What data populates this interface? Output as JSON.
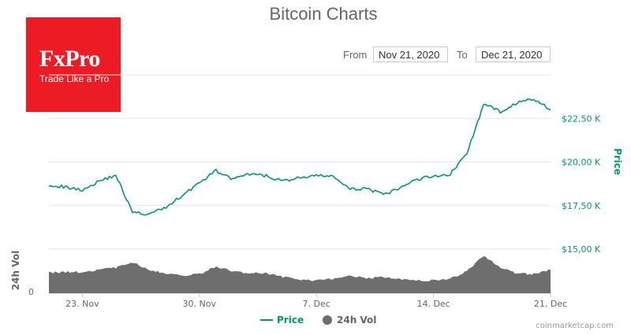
{
  "colors": {
    "price": "#019a6c",
    "volume": "#6e6e6e",
    "logo": "#ed1c24",
    "grid": "#e6e6e6"
  },
  "logo": {
    "main": "FxPro",
    "tagline": "Trade Like a Pro"
  },
  "range": {
    "from_label": "From",
    "from_value": "Nov 21, 2020",
    "to_label": "To",
    "to_value": "Dec 21, 2020"
  },
  "legend": {
    "price": "Price",
    "volume": "24h Vol"
  },
  "credits": "coinmarketcap.com",
  "chart_data": {
    "type": "line",
    "title": "Bitcoin Charts",
    "x_range": [
      "Nov 21, 2020",
      "Dec 21, 2020"
    ],
    "x_ticks": [
      "23. Nov",
      "30. Nov",
      "7. Dec",
      "14. Dec",
      "21. Dec"
    ],
    "price_axis": {
      "title": "Price",
      "ticks": [
        "$15,00 K",
        "$17,50 K",
        "$20,00 K",
        "$22,50 K"
      ],
      "values": [
        15000,
        17500,
        20000,
        22500
      ],
      "ylim": [
        15000,
        25000
      ],
      "side": "right"
    },
    "volume_axis": {
      "title": "24h Vol",
      "ticks": [
        "0"
      ]
    },
    "series": [
      {
        "name": "Price",
        "x": [
          "Nov 21, 2020",
          "Nov 22, 2020",
          "Nov 23, 2020",
          "Nov 24, 2020",
          "Nov 25, 2020",
          "Nov 26, 2020",
          "Nov 27, 2020",
          "Nov 28, 2020",
          "Nov 29, 2020",
          "Nov 30, 2020",
          "Dec 1, 2020",
          "Dec 2, 2020",
          "Dec 3, 2020",
          "Dec 4, 2020",
          "Dec 5, 2020",
          "Dec 6, 2020",
          "Dec 7, 2020",
          "Dec 8, 2020",
          "Dec 9, 2020",
          "Dec 10, 2020",
          "Dec 11, 2020",
          "Dec 12, 2020",
          "Dec 13, 2020",
          "Dec 14, 2020",
          "Dec 15, 2020",
          "Dec 16, 2020",
          "Dec 17, 2020",
          "Dec 18, 2020",
          "Dec 19, 2020",
          "Dec 20, 2020",
          "Dec 21, 2020"
        ],
        "values": [
          18700,
          18550,
          18400,
          18900,
          19250,
          17100,
          17000,
          17400,
          18100,
          18800,
          19500,
          19000,
          19300,
          19200,
          18900,
          19100,
          19200,
          19200,
          18400,
          18500,
          18100,
          18500,
          19000,
          19200,
          19300,
          20500,
          23300,
          22900,
          23400,
          23600,
          23000
        ]
      },
      {
        "name": "24h Vol",
        "x": [
          "Nov 21, 2020",
          "Nov 22, 2020",
          "Nov 23, 2020",
          "Nov 24, 2020",
          "Nov 25, 2020",
          "Nov 26, 2020",
          "Nov 27, 2020",
          "Nov 28, 2020",
          "Nov 29, 2020",
          "Nov 30, 2020",
          "Dec 1, 2020",
          "Dec 2, 2020",
          "Dec 3, 2020",
          "Dec 4, 2020",
          "Dec 5, 2020",
          "Dec 6, 2020",
          "Dec 7, 2020",
          "Dec 8, 2020",
          "Dec 9, 2020",
          "Dec 10, 2020",
          "Dec 11, 2020",
          "Dec 12, 2020",
          "Dec 13, 2020",
          "Dec 14, 2020",
          "Dec 15, 2020",
          "Dec 16, 2020",
          "Dec 17, 2020",
          "Dec 18, 2020",
          "Dec 19, 2020",
          "Dec 20, 2020",
          "Dec 21, 2020"
        ],
        "values": [
          0.48,
          0.5,
          0.5,
          0.55,
          0.6,
          0.72,
          0.55,
          0.46,
          0.42,
          0.45,
          0.62,
          0.52,
          0.46,
          0.48,
          0.38,
          0.33,
          0.3,
          0.33,
          0.4,
          0.36,
          0.38,
          0.32,
          0.3,
          0.3,
          0.34,
          0.52,
          0.88,
          0.6,
          0.46,
          0.45,
          0.55
        ]
      }
    ]
  }
}
